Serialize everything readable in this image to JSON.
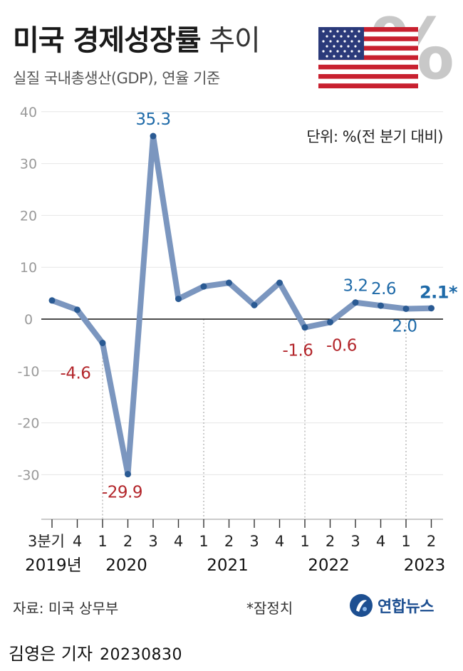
{
  "header": {
    "title_bold": "미국 경제성장률",
    "title_light": "추이",
    "subtitle": "실질 국내총생산(GDP), 연율 기준",
    "unit": "단위: %(전 분기 대비)"
  },
  "decoration": {
    "flag": "us-flag-icon",
    "percent_glyph": "%",
    "colors": {
      "line": "#7b96bf",
      "marker": "#2a5a93",
      "positive_label": "#1e6aa8",
      "negative_label": "#b3262b"
    }
  },
  "chart_data": {
    "type": "line",
    "title": "미국 경제성장률 추이",
    "subtitle": "실질 국내총생산(GDP), 연율 기준",
    "ylabel": "단위: %(전 분기 대비)",
    "ylim": [
      -40,
      40
    ],
    "yticks": [
      "40",
      "30",
      "20",
      "10",
      "0",
      "-10",
      "-20",
      "-30"
    ],
    "grid": false,
    "x": [
      "2019 Q3",
      "2019 Q4",
      "2020 Q1",
      "2020 Q2",
      "2020 Q3",
      "2020 Q4",
      "2021 Q1",
      "2021 Q2",
      "2021 Q3",
      "2021 Q4",
      "2022 Q1",
      "2022 Q2",
      "2022 Q3",
      "2022 Q4",
      "2023 Q1",
      "2023 Q2"
    ],
    "quarter_labels": [
      "3분기",
      "4",
      "1",
      "2",
      "3",
      "4",
      "1",
      "2",
      "3",
      "4",
      "1",
      "2",
      "3",
      "4",
      "1",
      "2"
    ],
    "year_labels": [
      {
        "text": "2019년",
        "at": 0
      },
      {
        "text": "2020",
        "at": 3
      },
      {
        "text": "2021",
        "at": 7
      },
      {
        "text": "2022",
        "at": 11
      },
      {
        "text": "2023",
        "at": 15
      }
    ],
    "series": [
      {
        "values": [
          3.6,
          1.8,
          -4.6,
          -29.9,
          35.3,
          3.9,
          6.3,
          7.0,
          2.7,
          7.0,
          -1.6,
          -0.6,
          3.2,
          2.6,
          2.0,
          2.1
        ]
      }
    ],
    "data_labels": [
      {
        "index": 2,
        "text": "-4.6",
        "tone": "negative"
      },
      {
        "index": 3,
        "text": "-29.9",
        "tone": "negative"
      },
      {
        "index": 4,
        "text": "35.3",
        "tone": "positive"
      },
      {
        "index": 10,
        "text": "-1.6",
        "tone": "negative"
      },
      {
        "index": 11,
        "text": "-0.6",
        "tone": "negative"
      },
      {
        "index": 12,
        "text": "3.2",
        "tone": "positive"
      },
      {
        "index": 13,
        "text": "2.6",
        "tone": "positive"
      },
      {
        "index": 14,
        "text": "2.0",
        "tone": "positive"
      },
      {
        "index": 15,
        "text": "2.1*",
        "tone": "positive-bold"
      }
    ]
  },
  "footer": {
    "source": "자료: 미국 상무부",
    "footnote": "*잠정치",
    "logo_text": "연합뉴스",
    "reporter": "김영은 기자",
    "date": "20230830"
  }
}
